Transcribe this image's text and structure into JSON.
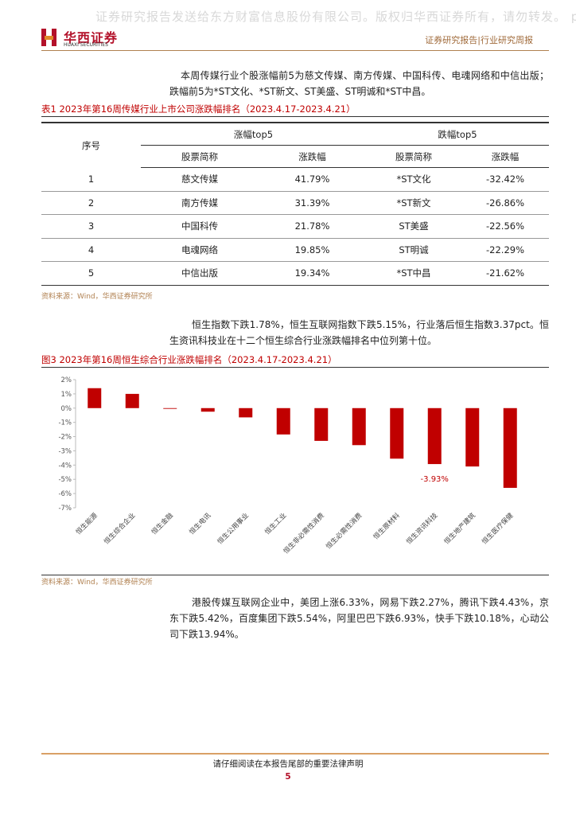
{
  "header": {
    "watermark": "证券研究报告发送给东方财富信息股份有限公司。版权归华西证券所有，请勿转发。 pl",
    "logo_cn": "华西证券",
    "logo_en": "HUAXI SECURITIES",
    "report_type": "证券研究报告|行业研究周报"
  },
  "paragraphs": [
    "本周传媒行业个股涨幅前5为慈文传媒、南方传媒、中国科传、电魂网络和中信出版；跌幅前5为*ST文化、*ST新文、ST美盛、ST明诚和*ST中昌。",
    "恒生指数下跌1.78%，恒生互联网指数下跌5.15%，行业落后恒生指数3.37pct。恒生资讯科技业在十二个恒生综合行业涨跌幅排名中位列第十位。",
    "港股传媒互联网企业中，美团上涨6.33%，网易下跌2.27%，腾讯下跌4.43%，京东下跌5.42%，百度集团下跌5.54%，阿里巴巴下跌6.93%，快手下跌10.18%，心动公司下跌13.94%。"
  ],
  "table": {
    "caption": "表1 2023年第16周传媒行业上市公司涨跌幅排名（2023.4.17-2023.4.21）",
    "index_header": "序号",
    "group_headers": [
      "涨幅top5",
      "跌幅top5"
    ],
    "column_headers": [
      "股票简称",
      "涨跌幅",
      "股票简称",
      "涨跌幅"
    ],
    "rows": [
      [
        "1",
        "慈文传媒",
        "41.79%",
        "*ST文化",
        "-32.42%"
      ],
      [
        "2",
        "南方传媒",
        "31.39%",
        "*ST新文",
        "-26.86%"
      ],
      [
        "3",
        "中国科传",
        "21.78%",
        "ST美盛",
        "-22.56%"
      ],
      [
        "4",
        "电魂网络",
        "19.85%",
        "ST明诚",
        "-22.29%"
      ],
      [
        "5",
        "中信出版",
        "19.34%",
        "*ST中昌",
        "-21.62%"
      ]
    ],
    "source": "资料来源：Wind，华西证券研究所"
  },
  "chart_data": {
    "type": "bar",
    "title": "图3 2023年第16周恒生综合行业涨跌幅排名（2023.4.17-2023.4.21）",
    "categories": [
      "恒生能源",
      "恒生综合企业",
      "恒生金融",
      "恒生电讯",
      "恒生公用事业",
      "恒生工业",
      "恒生非必需性消费",
      "恒生必需性消费",
      "恒生原材料",
      "恒生资讯科技",
      "恒生地产建筑",
      "恒生医疗保健"
    ],
    "values": [
      1.4,
      1.0,
      -0.05,
      -0.25,
      -0.65,
      -1.85,
      -2.3,
      -2.6,
      -3.55,
      -3.93,
      -4.1,
      -5.6
    ],
    "value_labels": [
      null,
      null,
      null,
      null,
      null,
      null,
      null,
      null,
      null,
      "-3.93%",
      null,
      null
    ],
    "color": "#c00000",
    "ylim": [
      -7,
      2
    ],
    "yticks": [
      {
        "value": 2,
        "label": "2%"
      },
      {
        "value": 1,
        "label": "1%"
      },
      {
        "value": 0,
        "label": "0%"
      },
      {
        "value": -1,
        "label": "-1%"
      },
      {
        "value": -2,
        "label": "-2%"
      },
      {
        "value": -3,
        "label": "-3%"
      },
      {
        "value": -4,
        "label": "-4%"
      },
      {
        "value": -5,
        "label": "-5%"
      },
      {
        "value": -6,
        "label": "-6%"
      },
      {
        "value": -7,
        "label": "-7%"
      }
    ],
    "grid": false,
    "source": "资料来源：Wind，华西证券研究所"
  },
  "footer": {
    "notice": "请仔细阅读在本报告尾部的重要法律声明",
    "page": "5"
  }
}
